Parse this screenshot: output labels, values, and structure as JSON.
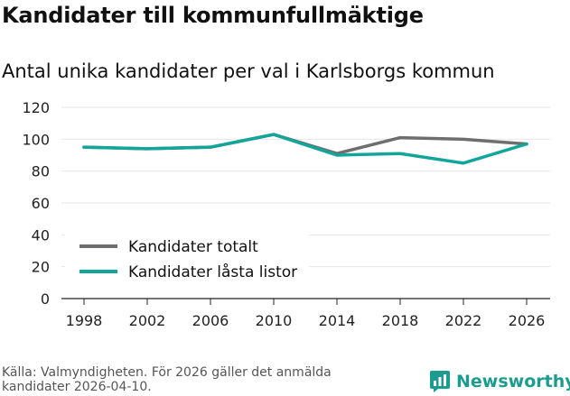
{
  "title": "Kandidater till kommunfullmäktige",
  "subtitle": "Antal unika kandidater per val i Karlsborgs kommun",
  "source": "Källa: Valmyndigheten. För 2026 gäller det anmälda kandidater 2026-04-10.",
  "brand": {
    "name": "Newsworthy",
    "icon": "bar-chart-icon",
    "color": "#1a9c8f"
  },
  "chart_data": {
    "type": "line",
    "title": "Kandidater till kommunfullmäktige",
    "subtitle": "Antal unika kandidater per val i Karlsborgs kommun",
    "xlabel": "",
    "ylabel": "",
    "x": [
      1998,
      2002,
      2006,
      2010,
      2014,
      2018,
      2022,
      2026
    ],
    "ylim": [
      0,
      120
    ],
    "yticks": [
      0,
      20,
      40,
      60,
      80,
      100,
      120
    ],
    "grid": true,
    "legend": "bottom-left",
    "series": [
      {
        "name": "Kandidater totalt",
        "color": "#6e6e6e",
        "values": [
          95,
          94,
          95,
          103,
          91,
          101,
          100,
          97
        ]
      },
      {
        "name": "Kandidater låsta listor",
        "color": "#12a59a",
        "values": [
          95,
          94,
          95,
          103,
          90,
          91,
          85,
          97
        ]
      }
    ]
  }
}
